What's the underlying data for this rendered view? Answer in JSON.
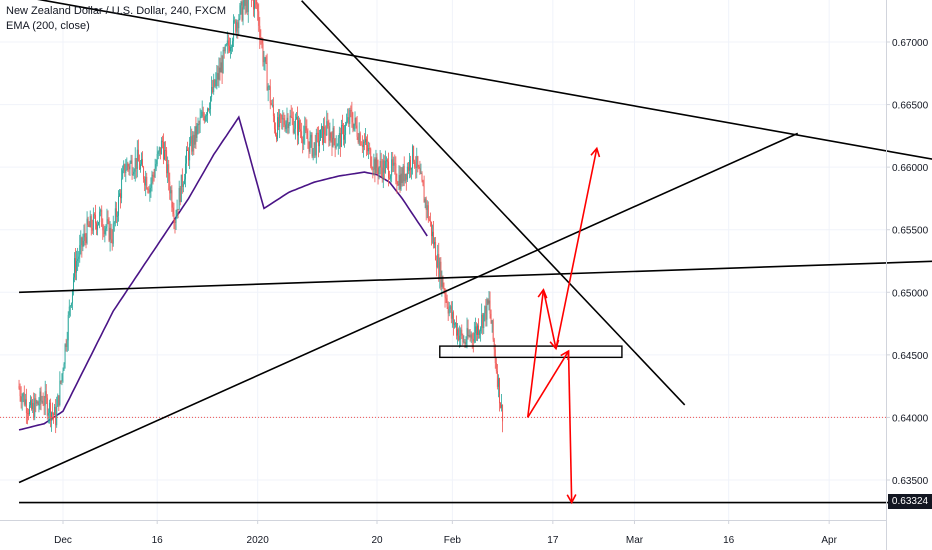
{
  "legend": {
    "symbol": "New Zealand Dollar / U.S. Dollar, 240, FXCM",
    "indicator": "EMA (200, close)"
  },
  "colors": {
    "up": "#26a69a",
    "down": "#ef5350",
    "ema": "#4a1486",
    "drawing_black": "#000000",
    "drawing_red": "#ff0000",
    "grid": "#f0f3fa",
    "axis_text": "#131722"
  },
  "chart_data": {
    "type": "candlestick",
    "title": "",
    "xlabel": "",
    "ylabel": "",
    "ylim": [
      0.63,
      0.6735
    ],
    "y_ticks": [
      "0.63500",
      "0.64000",
      "0.64500",
      "0.65000",
      "0.65500",
      "0.66000",
      "0.66500",
      "0.67000"
    ],
    "y_tick_values": [
      0.635,
      0.64,
      0.645,
      0.65,
      0.655,
      0.66,
      0.665,
      0.67
    ],
    "x_ticks": [
      "Dec",
      "16",
      "2020",
      "20",
      "Feb",
      "17",
      "Mar",
      "16",
      "Apr"
    ],
    "x_tick_days": [
      0,
      15,
      31,
      50,
      62,
      78,
      91,
      106,
      122
    ],
    "current_price_label": "0.63324",
    "current_price": 0.63324,
    "dotted_level": 0.64,
    "price_path_days": [
      -7,
      -5,
      -3,
      -1,
      0,
      2,
      4,
      6,
      8,
      10,
      12,
      14,
      16,
      18,
      20,
      22,
      24,
      26,
      28,
      30,
      31,
      32,
      34,
      36,
      38,
      40,
      42,
      44,
      46,
      48,
      50,
      52,
      54,
      56,
      58,
      60,
      62,
      64,
      66,
      68,
      70
    ],
    "price_path_values": [
      0.6425,
      0.6405,
      0.6415,
      0.64,
      0.6435,
      0.652,
      0.655,
      0.656,
      0.6545,
      0.66,
      0.6605,
      0.6585,
      0.662,
      0.656,
      0.661,
      0.6635,
      0.666,
      0.669,
      0.672,
      0.6735,
      0.673,
      0.669,
      0.663,
      0.664,
      0.663,
      0.6615,
      0.663,
      0.662,
      0.664,
      0.662,
      0.66,
      0.66,
      0.659,
      0.661,
      0.657,
      0.652,
      0.648,
      0.646,
      0.647,
      0.649,
      0.6405
    ],
    "ema_days": [
      -7,
      -3,
      0,
      4,
      8,
      12,
      16,
      20,
      24,
      28,
      32,
      36,
      40,
      44,
      48,
      50,
      52,
      54,
      56,
      58
    ],
    "ema_values": [
      0.639,
      0.6395,
      0.6405,
      0.6445,
      0.6485,
      0.6515,
      0.6545,
      0.6575,
      0.661,
      0.664,
      0.6567,
      0.658,
      0.6588,
      0.6593,
      0.6596,
      0.6594,
      0.6588,
      0.6575,
      0.656,
      0.6545
    ],
    "drawings": {
      "black_lines": [
        {
          "from": {
            "day": -5,
            "value": 0.6735
          },
          "to": {
            "day": 140,
            "value": 0.6605
          }
        },
        {
          "from": {
            "day": 38,
            "value": 0.6733
          },
          "to": {
            "day": 99,
            "value": 0.641
          }
        },
        {
          "from": {
            "day": -7,
            "value": 0.65
          },
          "to": {
            "day": 140,
            "value": 0.6525
          }
        },
        {
          "from": {
            "day": -7,
            "value": 0.6348
          },
          "to": {
            "day": 117,
            "value": 0.6627
          }
        },
        {
          "from": {
            "day": -7,
            "value": 0.6332
          },
          "to": {
            "day": 140,
            "value": 0.6332
          }
        }
      ],
      "zone_box": {
        "from": {
          "day": 60,
          "value": 0.6457
        },
        "to": {
          "day": 89,
          "value": 0.6448
        }
      },
      "red_arrows": [
        {
          "path": [
            {
              "day": 74,
              "value": 0.64
            },
            {
              "day": 76.5,
              "value": 0.6502
            }
          ]
        },
        {
          "path": [
            {
              "day": 76.5,
              "value": 0.6502
            },
            {
              "day": 78.5,
              "value": 0.6455
            }
          ]
        },
        {
          "path": [
            {
              "day": 78.5,
              "value": 0.6455
            },
            {
              "day": 85,
              "value": 0.6615
            }
          ]
        },
        {
          "path": [
            {
              "day": 74,
              "value": 0.64
            },
            {
              "day": 80.5,
              "value": 0.6453
            }
          ]
        },
        {
          "path": [
            {
              "day": 80.5,
              "value": 0.6453
            },
            {
              "day": 81,
              "value": 0.6332
            }
          ]
        }
      ]
    }
  }
}
